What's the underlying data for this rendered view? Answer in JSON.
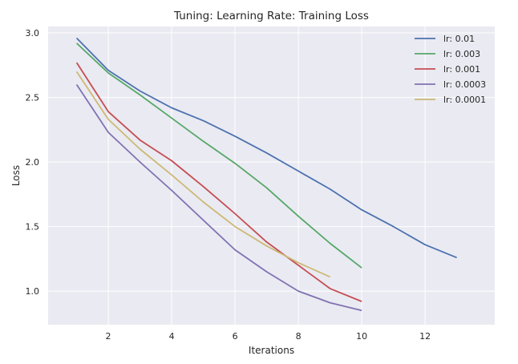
{
  "chart_data": {
    "type": "line",
    "title": "Tuning: Learning Rate: Training Loss",
    "xlabel": "Iterations",
    "ylabel": "Loss",
    "xlim": [
      0.1,
      14.2
    ],
    "ylim": [
      0.74,
      3.05
    ],
    "xticks": [
      2,
      4,
      6,
      8,
      10,
      12
    ],
    "xtick_labels": [
      "2",
      "4",
      "6",
      "8",
      "10",
      "12"
    ],
    "yticks": [
      1.0,
      1.5,
      2.0,
      2.5,
      3.0
    ],
    "ytick_labels": [
      "1.0",
      "1.5",
      "2.0",
      "2.5",
      "3.0"
    ],
    "grid": true,
    "legend_position": "top-right",
    "background": "#eaeaf2",
    "series": [
      {
        "name": "lr: 0.01",
        "color": "#4c72b0",
        "x": [
          1,
          2,
          3,
          4,
          5,
          6,
          7,
          8,
          9,
          10,
          11,
          12,
          13
        ],
        "y": [
          2.96,
          2.71,
          2.55,
          2.42,
          2.32,
          2.2,
          2.07,
          1.93,
          1.79,
          1.63,
          1.5,
          1.36,
          1.26
        ]
      },
      {
        "name": "lr: 0.003",
        "color": "#55a868",
        "x": [
          1,
          2,
          3,
          4,
          5,
          6,
          7,
          8,
          9,
          10
        ],
        "y": [
          2.92,
          2.69,
          2.52,
          2.34,
          2.16,
          1.99,
          1.8,
          1.58,
          1.37,
          1.18
        ]
      },
      {
        "name": "lr: 0.001",
        "color": "#c44e52",
        "x": [
          1,
          2,
          3,
          4,
          5,
          6,
          7,
          8,
          9,
          10
        ],
        "y": [
          2.77,
          2.39,
          2.17,
          2.01,
          1.81,
          1.6,
          1.38,
          1.2,
          1.02,
          0.92
        ]
      },
      {
        "name": "lr: 0.0003",
        "color": "#8172b2",
        "x": [
          1,
          2,
          3,
          4,
          5,
          6,
          7,
          8,
          9,
          10
        ],
        "y": [
          2.6,
          2.23,
          2.0,
          1.78,
          1.55,
          1.32,
          1.15,
          1.0,
          0.91,
          0.85
        ]
      },
      {
        "name": "lr: 0.0001",
        "color": "#ccb974",
        "x": [
          1,
          2,
          3,
          4,
          5,
          6,
          7,
          8,
          9
        ],
        "y": [
          2.7,
          2.33,
          2.1,
          1.9,
          1.69,
          1.5,
          1.35,
          1.22,
          1.11
        ]
      }
    ]
  }
}
